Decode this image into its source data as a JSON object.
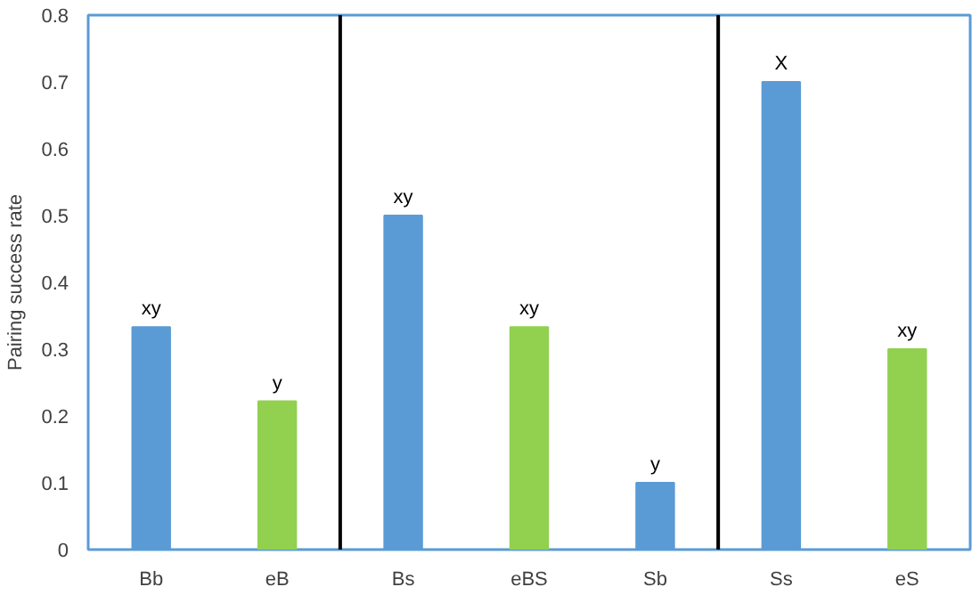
{
  "chart_data": {
    "type": "bar",
    "ylabel": "Pairing success rate",
    "categories": [
      "Bb",
      "eB",
      "Bs",
      "eBS",
      "Sb",
      "Ss",
      "eS"
    ],
    "values": [
      0.333,
      0.222,
      0.5,
      0.333,
      0.1,
      0.7,
      0.3
    ],
    "colors": [
      "#5b9bd5",
      "#92d050",
      "#5b9bd5",
      "#92d050",
      "#5b9bd5",
      "#5b9bd5",
      "#92d050"
    ],
    "ylim": [
      0,
      0.8
    ],
    "yticks": [
      {
        "value": 0,
        "label": "0"
      },
      0.1,
      0.2,
      0.3,
      0.4,
      0.5,
      0.6,
      0.7,
      0.8
    ],
    "grid": false,
    "annotations": [
      {
        "text": "xy",
        "x": "Bb",
        "y": 0.333
      },
      {
        "text": "y",
        "x": "eB",
        "y": 0.222
      },
      {
        "text": "xy",
        "x": "Bs",
        "y": 0.5
      },
      {
        "text": "xy",
        "x": "eBS",
        "y": 0.333
      },
      {
        "text": "y",
        "x": "Sb",
        "y": 0.1
      },
      {
        "text": "X",
        "x": "Ss",
        "y": 0.7
      },
      {
        "text": "xy",
        "x": "eS",
        "y": 0.3
      }
    ]
  }
}
